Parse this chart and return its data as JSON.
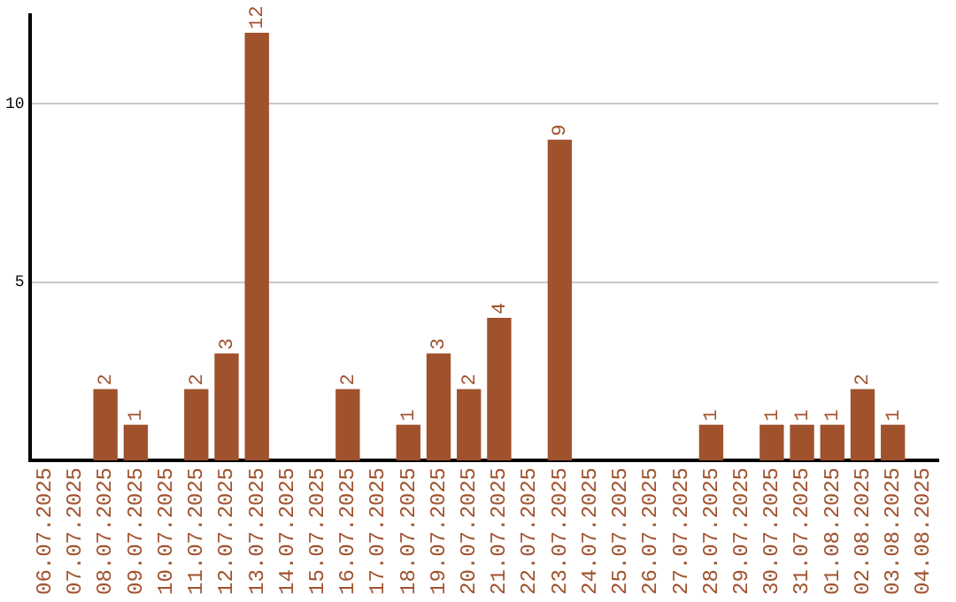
{
  "chart_data": {
    "type": "bar",
    "categories": [
      "06.07.2025",
      "07.07.2025",
      "08.07.2025",
      "09.07.2025",
      "10.07.2025",
      "11.07.2025",
      "12.07.2025",
      "13.07.2025",
      "14.07.2025",
      "15.07.2025",
      "16.07.2025",
      "17.07.2025",
      "18.07.2025",
      "19.07.2025",
      "20.07.2025",
      "21.07.2025",
      "22.07.2025",
      "23.07.2025",
      "24.07.2025",
      "25.07.2025",
      "26.07.2025",
      "27.07.2025",
      "28.07.2025",
      "29.07.2025",
      "30.07.2025",
      "31.07.2025",
      "01.08.2025",
      "02.08.2025",
      "03.08.2025",
      "04.08.2025"
    ],
    "values": [
      0,
      0,
      2,
      1,
      0,
      2,
      3,
      12,
      0,
      0,
      2,
      0,
      1,
      3,
      2,
      4,
      0,
      9,
      0,
      0,
      0,
      0,
      1,
      0,
      1,
      1,
      1,
      2,
      1,
      0
    ],
    "value_labels": [
      null,
      null,
      "2",
      "1",
      null,
      "2",
      "3",
      "12",
      null,
      null,
      "2",
      null,
      "1",
      "3",
      "2",
      "4",
      null,
      "9",
      null,
      null,
      null,
      null,
      "1",
      null,
      "1",
      "1",
      "1",
      "2",
      "1",
      null
    ],
    "color": "#a0522d",
    "ylim": [
      0,
      12.5
    ],
    "yticks": [
      5,
      10
    ],
    "grid": "y",
    "legend": false
  }
}
